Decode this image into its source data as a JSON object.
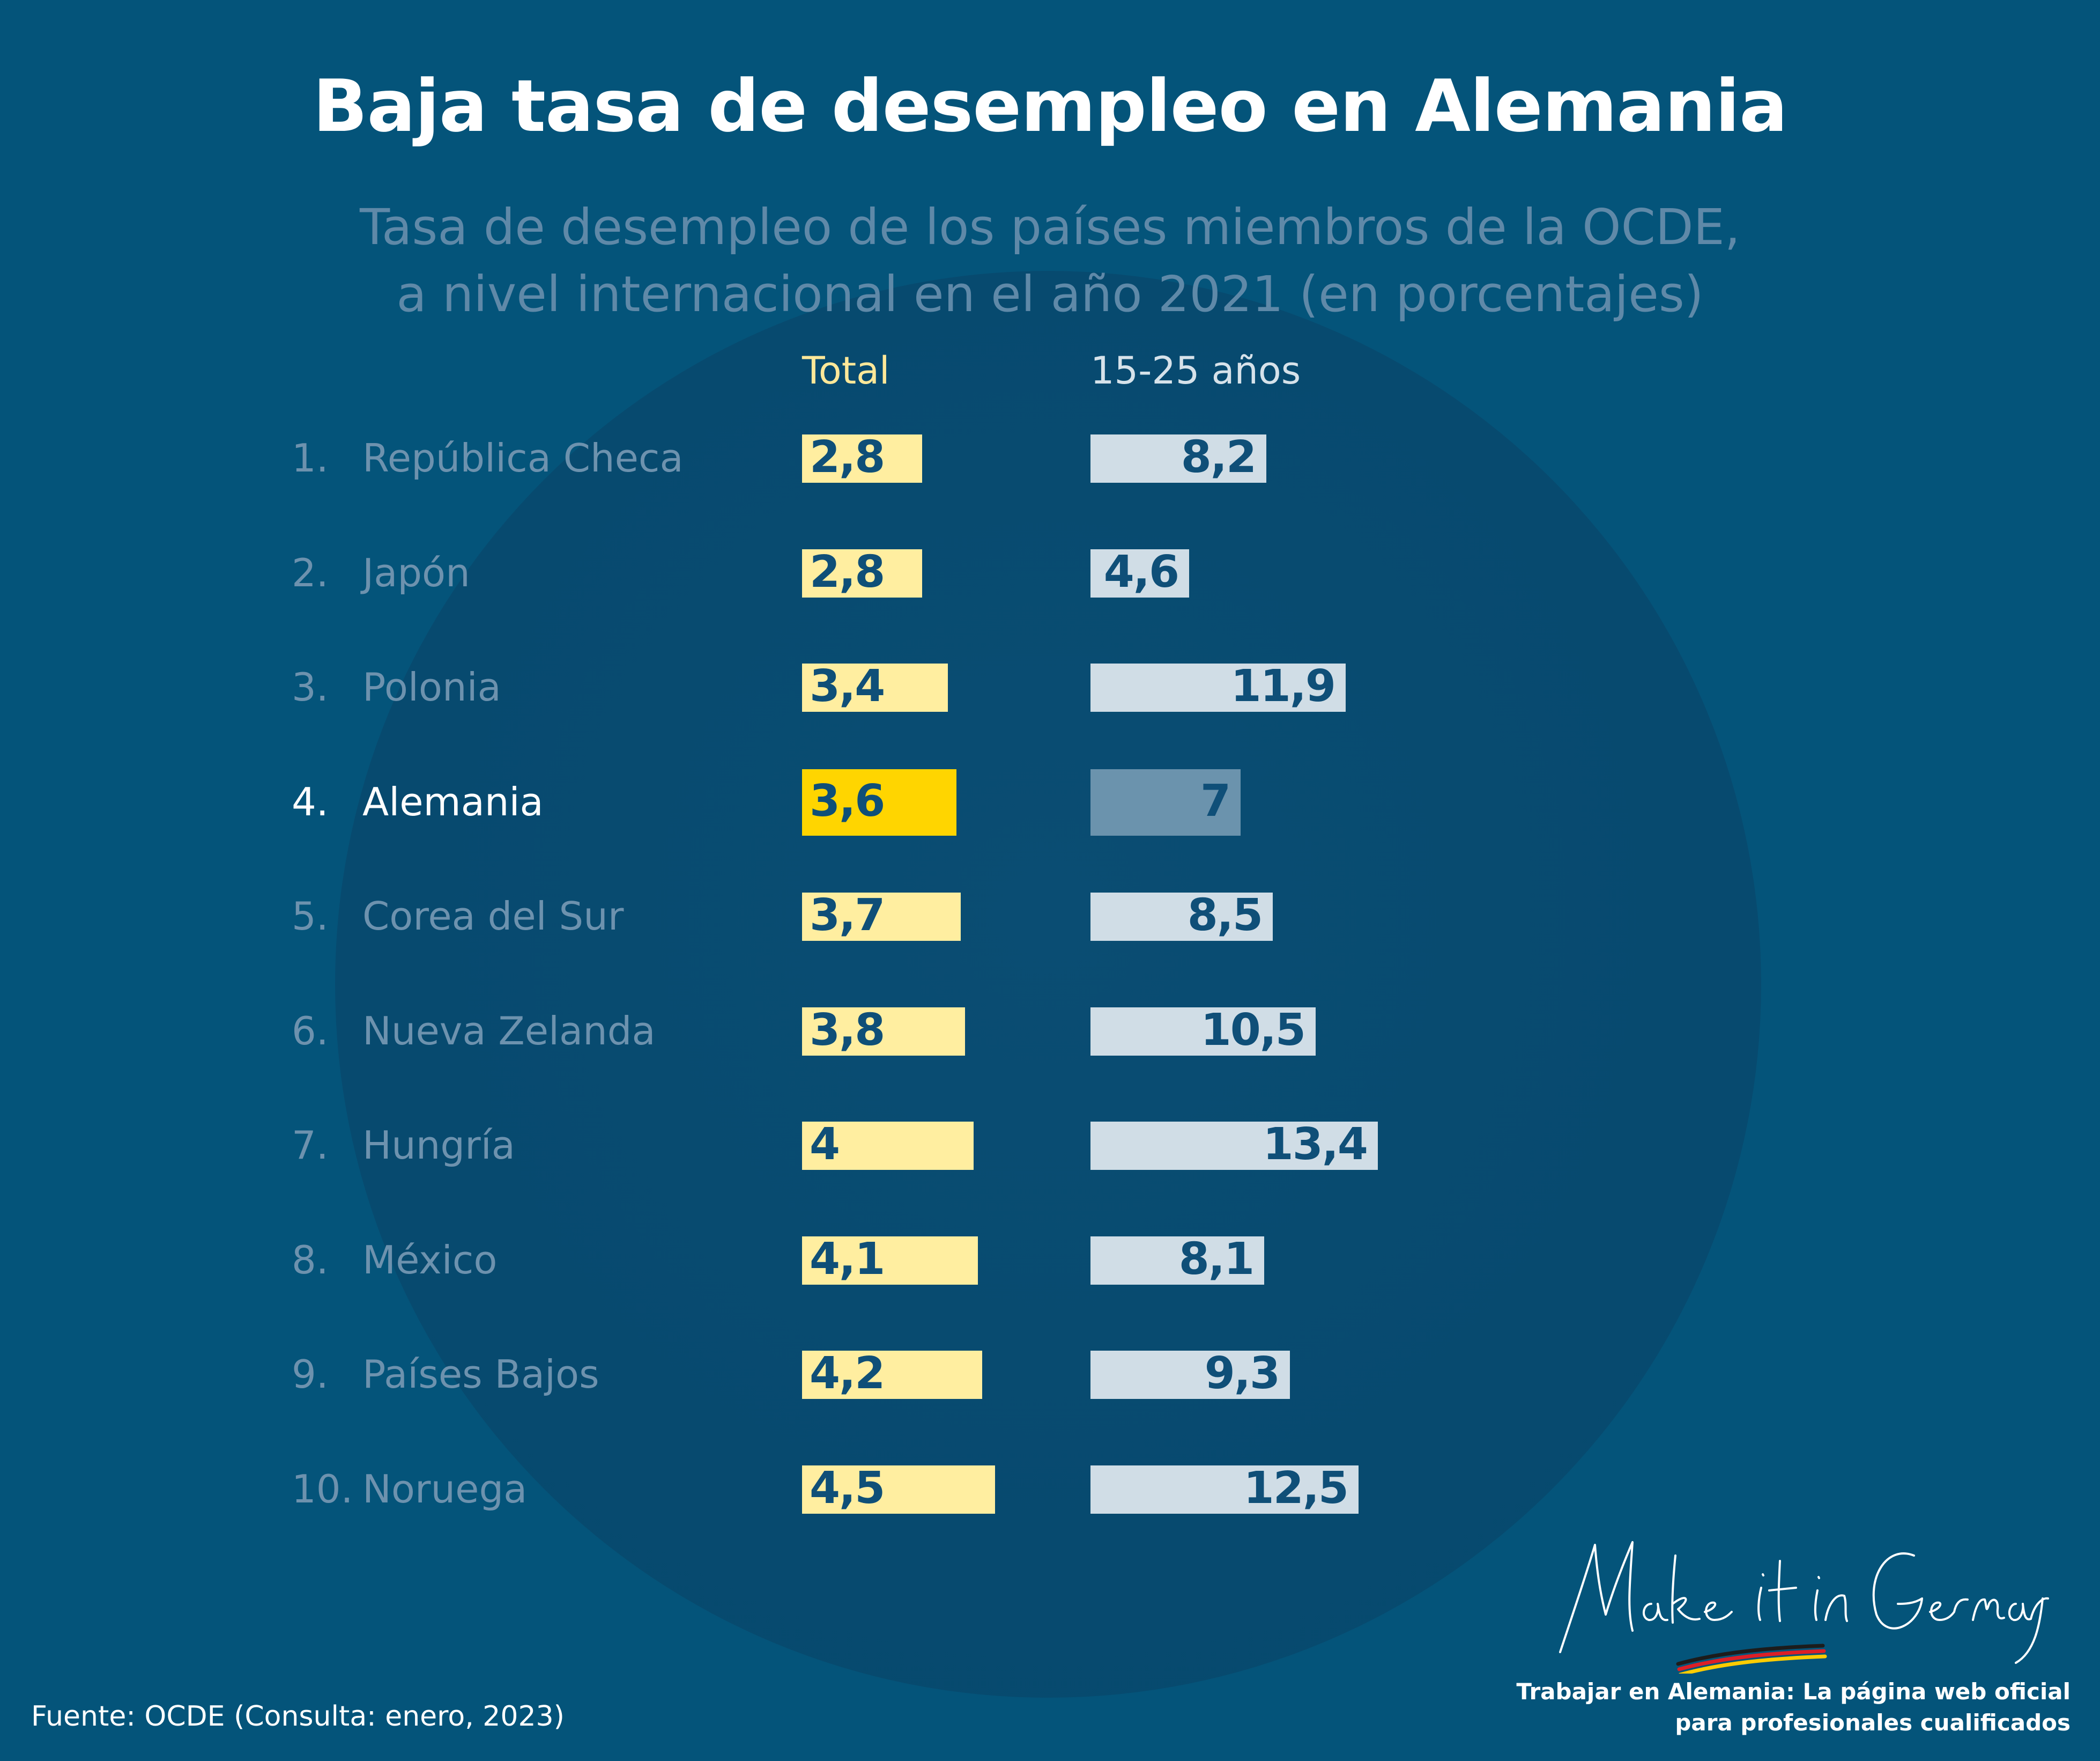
{
  "chart_data": {
    "type": "bar",
    "title": "Baja tasa de desempleo en Alemania",
    "subtitle_lines": [
      "Tasa de desempleo de los países miembros de la OCDE,",
      "a nivel internacional en el año 2021 (en porcentajes)"
    ],
    "column_headers": {
      "total": "Total",
      "youth": "15-25 años"
    },
    "ranks": [
      "1.",
      "2.",
      "3.",
      "4.",
      "5.",
      "6.",
      "7.",
      "8.",
      "9.",
      "10."
    ],
    "categories": [
      "República Checa",
      "Japón",
      "Polonia",
      "Alemania",
      "Corea del Sur",
      "Nueva Zelanda",
      "Hungría",
      "México",
      "Países Bajos",
      "Noruega"
    ],
    "highlight": "Alemania",
    "series": [
      {
        "name": "Total",
        "values": [
          2.8,
          2.8,
          3.4,
          3.6,
          3.7,
          3.8,
          4,
          4.1,
          4.2,
          4.5
        ],
        "labels": [
          "2,8",
          "2,8",
          "3,4",
          "3,6",
          "3,7",
          "3,8",
          "4",
          "4,1",
          "4,2",
          "4,5"
        ]
      },
      {
        "name": "15-25 años",
        "values": [
          8.2,
          4.6,
          11.9,
          7,
          8.5,
          10.5,
          13.4,
          8.1,
          9.3,
          12.5
        ],
        "labels": [
          "8,2",
          "4,6",
          "11,9",
          "7",
          "8,5",
          "10,5",
          "13,4",
          "8,1",
          "9,3",
          "12,5"
        ]
      }
    ],
    "colors": {
      "background": "#04547a",
      "total_bar": "#ffeea0",
      "total_bar_highlight": "#ffd500",
      "youth_bar": "#d0dde6",
      "youth_bar_highlight": "#6b93ad",
      "value_text": "#0f4f78",
      "label_text": "#6d92ae"
    },
    "grid": false
  },
  "source": "Fuente: OCDE (Consulta: enero, 2023)",
  "branding": {
    "logo_text": "Make it in Germany",
    "tagline_lines": [
      "Trabajar en Alemania: La página web oficial",
      "para profesionales cualificados"
    ]
  }
}
